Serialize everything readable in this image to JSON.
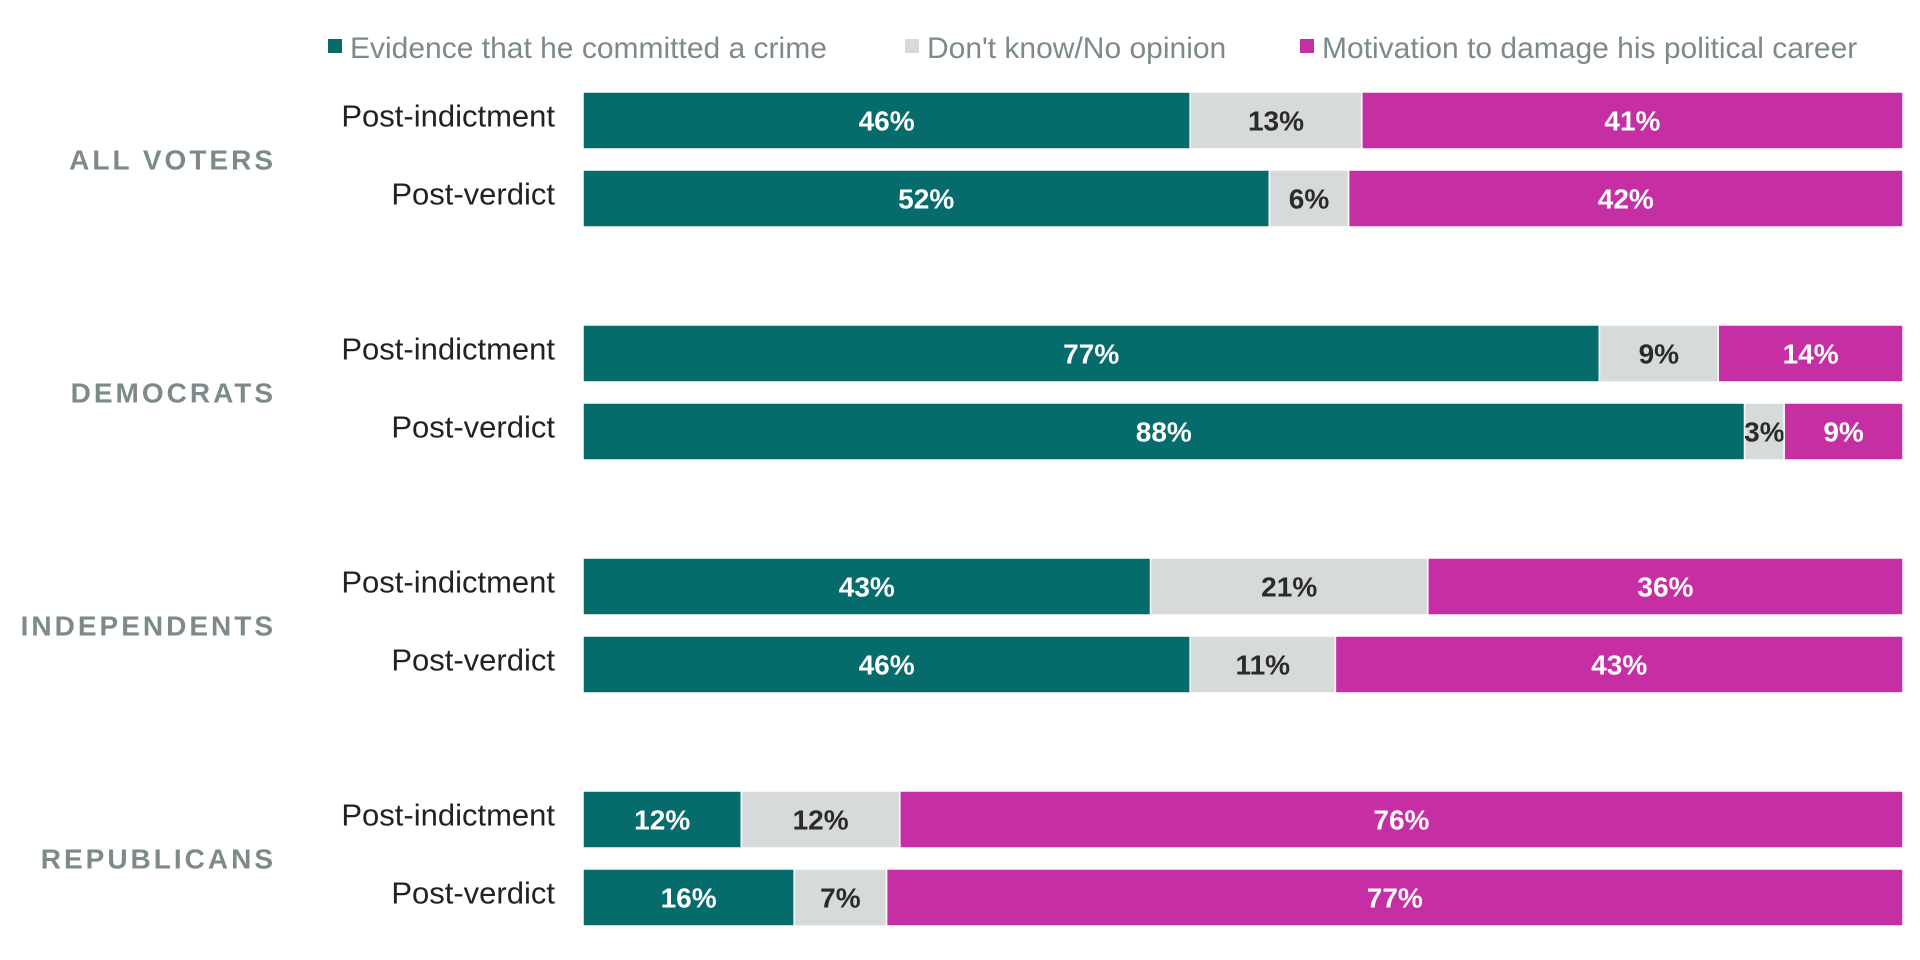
{
  "chart_data": {
    "type": "bar",
    "orientation": "horizontal",
    "stacked": true,
    "xlim": [
      0,
      100
    ],
    "legend_position": "top",
    "series_meta": [
      {
        "key": "evidence",
        "name": "Evidence that he committed a crime",
        "color": "#066c6b",
        "label_color": "#ffffff"
      },
      {
        "key": "dont_know",
        "name": "Don't know/No opinion",
        "color": "#d7dadb",
        "label_color": "#2b2b2b"
      },
      {
        "key": "motivation",
        "name": "Motivation to damage his political career",
        "color": "#c52fa3",
        "label_color": "#ffffff"
      }
    ],
    "groups": [
      {
        "name": "ALL VOTERS",
        "rows": [
          {
            "label": "Post-indictment",
            "values": [
              46,
              13,
              41
            ]
          },
          {
            "label": "Post-verdict",
            "values": [
              52,
              6,
              42
            ]
          }
        ]
      },
      {
        "name": "DEMOCRATS",
        "rows": [
          {
            "label": "Post-indictment",
            "values": [
              77,
              9,
              14
            ]
          },
          {
            "label": "Post-verdict",
            "values": [
              88,
              3,
              9
            ]
          }
        ]
      },
      {
        "name": "INDEPENDENTS",
        "rows": [
          {
            "label": "Post-indictment",
            "values": [
              43,
              21,
              36
            ]
          },
          {
            "label": "Post-verdict",
            "values": [
              46,
              11,
              43
            ]
          }
        ]
      },
      {
        "name": "REPUBLICANS",
        "rows": [
          {
            "label": "Post-indictment",
            "values": [
              12,
              12,
              76
            ]
          },
          {
            "label": "Post-verdict",
            "values": [
              16,
              7,
              77
            ]
          }
        ]
      }
    ]
  }
}
